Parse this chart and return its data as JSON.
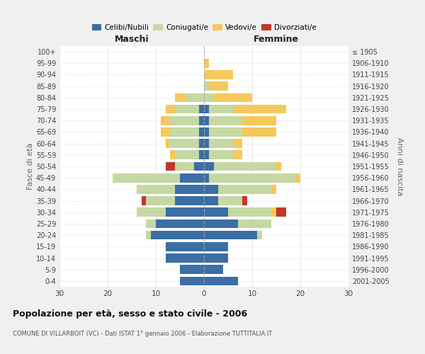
{
  "age_groups": [
    "0-4",
    "5-9",
    "10-14",
    "15-19",
    "20-24",
    "25-29",
    "30-34",
    "35-39",
    "40-44",
    "45-49",
    "50-54",
    "55-59",
    "60-64",
    "65-69",
    "70-74",
    "75-79",
    "80-84",
    "85-89",
    "90-94",
    "95-99",
    "100+"
  ],
  "birth_years": [
    "2001-2005",
    "1996-2000",
    "1991-1995",
    "1986-1990",
    "1981-1985",
    "1976-1980",
    "1971-1975",
    "1966-1970",
    "1961-1965",
    "1956-1960",
    "1951-1955",
    "1946-1950",
    "1941-1945",
    "1936-1940",
    "1931-1935",
    "1926-1930",
    "1921-1925",
    "1916-1920",
    "1911-1915",
    "1906-1910",
    "≤ 1905"
  ],
  "male": {
    "celibi": [
      5,
      5,
      8,
      8,
      11,
      10,
      8,
      6,
      6,
      5,
      2,
      1,
      1,
      1,
      1,
      1,
      0,
      0,
      0,
      0,
      0
    ],
    "coniugati": [
      0,
      0,
      0,
      0,
      1,
      2,
      6,
      6,
      8,
      14,
      4,
      5,
      6,
      6,
      6,
      5,
      4,
      0,
      0,
      0,
      0
    ],
    "vedovi": [
      0,
      0,
      0,
      0,
      0,
      0,
      0,
      0,
      0,
      0,
      0,
      1,
      1,
      2,
      2,
      2,
      2,
      0,
      0,
      0,
      0
    ],
    "divorziati": [
      0,
      0,
      0,
      0,
      0,
      0,
      0,
      1,
      0,
      0,
      2,
      0,
      0,
      0,
      0,
      0,
      0,
      0,
      0,
      0,
      0
    ]
  },
  "female": {
    "nubili": [
      7,
      4,
      5,
      5,
      11,
      7,
      5,
      3,
      3,
      1,
      2,
      1,
      1,
      1,
      1,
      1,
      0,
      0,
      0,
      0,
      0
    ],
    "coniugate": [
      0,
      0,
      0,
      0,
      1,
      7,
      9,
      5,
      11,
      18,
      13,
      5,
      5,
      7,
      7,
      5,
      2,
      1,
      0,
      0,
      0
    ],
    "vedove": [
      0,
      0,
      0,
      0,
      0,
      0,
      1,
      0,
      1,
      1,
      1,
      2,
      2,
      7,
      7,
      11,
      8,
      4,
      6,
      1,
      0
    ],
    "divorziate": [
      0,
      0,
      0,
      0,
      0,
      0,
      2,
      1,
      0,
      0,
      0,
      0,
      0,
      0,
      0,
      0,
      0,
      0,
      0,
      0,
      0
    ]
  },
  "colors": {
    "celibi": "#3a6ea5",
    "coniugati": "#c5d8a4",
    "vedovi": "#f5c85c",
    "divorziati": "#c0392b"
  },
  "xlim": 30,
  "title": "Popolazione per età, sesso e stato civile - 2006",
  "subtitle": "COMUNE DI VILLARBOIT (VC) - Dati ISTAT 1° gennaio 2006 - Elaborazione TUTTITALIA.IT",
  "ylabel_left": "Fasce di età",
  "ylabel_right": "Anni di nascita",
  "xlabel_male": "Maschi",
  "xlabel_female": "Femmine",
  "bg_color": "#f0f0f0",
  "plot_bg_color": "#ffffff",
  "grid_color": "#cccccc"
}
